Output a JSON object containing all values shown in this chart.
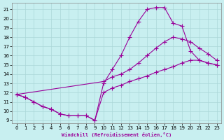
{
  "xlabel": "Windchill (Refroidissement éolien,°C)",
  "xlim": [
    -0.5,
    23.5
  ],
  "ylim": [
    8.7,
    21.7
  ],
  "yticks": [
    9,
    10,
    11,
    12,
    13,
    14,
    15,
    16,
    17,
    18,
    19,
    20,
    21
  ],
  "xticks": [
    0,
    1,
    2,
    3,
    4,
    5,
    6,
    7,
    8,
    9,
    10,
    11,
    12,
    13,
    14,
    15,
    16,
    17,
    18,
    19,
    20,
    21,
    22,
    23
  ],
  "bg_color": "#c8eff0",
  "grid_color": "#aad8d8",
  "line_color": "#990099",
  "line_width": 0.8,
  "marker": "+",
  "markersize": 4,
  "markerwidth": 0.8,
  "line1_x": [
    0,
    1,
    2,
    3,
    4,
    5,
    6,
    7,
    8,
    9,
    10,
    11,
    12,
    13,
    14,
    15,
    16,
    17,
    18,
    19,
    20,
    21,
    22,
    23
  ],
  "line1_y": [
    11.8,
    11.5,
    11.0,
    10.5,
    10.2,
    9.7,
    9.5,
    9.5,
    9.5,
    9.0,
    12.0,
    12.5,
    12.8,
    13.2,
    13.5,
    13.8,
    14.2,
    14.5,
    14.8,
    15.2,
    15.5,
    15.5,
    15.2,
    15.0
  ],
  "line2_x": [
    0,
    1,
    2,
    3,
    4,
    5,
    6,
    7,
    8,
    9,
    10,
    11,
    12,
    13,
    14,
    15,
    16,
    17,
    18,
    19,
    20,
    21,
    22,
    23
  ],
  "line2_y": [
    11.8,
    11.5,
    11.0,
    10.5,
    10.2,
    9.7,
    9.5,
    9.5,
    9.5,
    9.0,
    13.0,
    14.5,
    16.0,
    18.0,
    19.7,
    21.0,
    21.2,
    21.2,
    19.5,
    19.2,
    16.5,
    15.5,
    15.2,
    15.0
  ],
  "line3_x": [
    0,
    10,
    11,
    12,
    13,
    14,
    15,
    16,
    17,
    18,
    19,
    20,
    21,
    22,
    23
  ],
  "line3_y": [
    11.8,
    13.2,
    13.7,
    14.0,
    14.5,
    15.2,
    16.0,
    16.8,
    17.5,
    18.0,
    17.8,
    17.5,
    16.8,
    16.2,
    15.5
  ]
}
